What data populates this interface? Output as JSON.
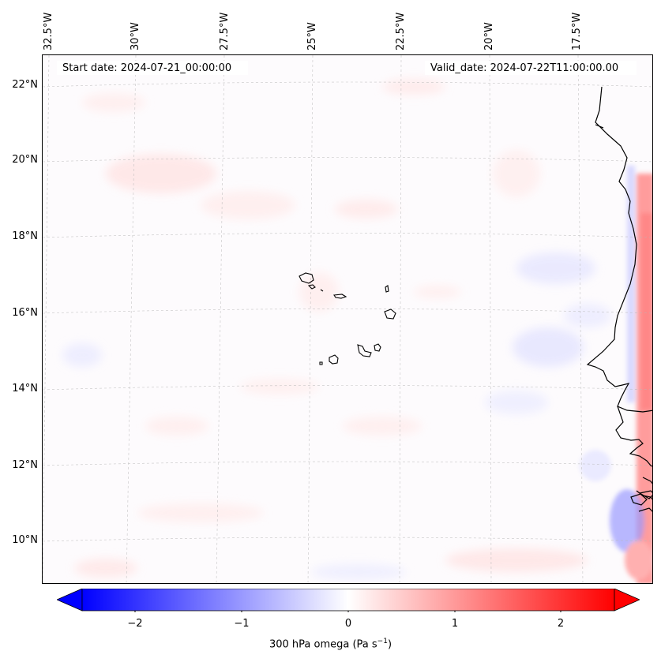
{
  "map": {
    "start_date": "Start date: 2024-07-21_00:00:00",
    "valid_date": "Valid_date: 2024-07-22T11:00:00.00",
    "longitude_labels": [
      "32.5°W",
      "30°W",
      "27.5°W",
      "25°W",
      "22.5°W",
      "20°W",
      "17.5°W"
    ],
    "latitude_labels": [
      "22°N",
      "20°N",
      "18°N",
      "16°N",
      "14°N",
      "12°N",
      "10°N"
    ],
    "gridlines": true,
    "coastlines": true
  },
  "colorbar": {
    "label_main": "300 hPa omega (Pa s",
    "label_exp": "−1",
    "label_close": ")",
    "tick_labels": [
      "−2",
      "−1",
      "0",
      "1",
      "2"
    ],
    "colormap": "bwr",
    "range": [
      -2.5,
      2.5
    ],
    "extend": "both",
    "colors": {
      "negative": "#0000ff",
      "zero": "#ffffff",
      "positive": "#ff0000"
    }
  }
}
